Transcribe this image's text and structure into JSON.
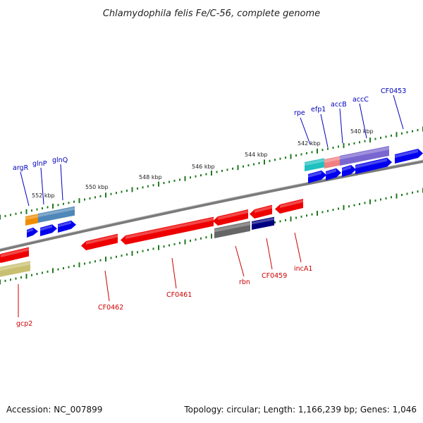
{
  "header": {
    "title": "Chlamydophila felis Fe/C-56, complete genome"
  },
  "footer": {
    "accession": "Accession: NC_007899",
    "summary": "Topology: circular; Length: 1,166,239 bp; Genes: 1,046"
  },
  "scale": {
    "labels": [
      "552 kbp",
      "550 kbp",
      "548 kbp",
      "546 kbp",
      "544 kbp",
      "542 kbp",
      "540 kbp"
    ]
  },
  "colors": {
    "backbone": "#7a7a7a",
    "tick": "#1f7a1f",
    "forward_label": "#0000bb",
    "reverse_label": "#cc0000",
    "forward_cds": "#0000ee",
    "reverse_cds": "#ee0000",
    "cog_orange": "#f08c00",
    "cog_steel": "#4f87b8",
    "cog_teal": "#20c0c0",
    "cog_salmon": "#f08080",
    "cog_purple": "#7a66d0",
    "cog_gray": "#666666",
    "cog_navy": "#000080",
    "cog_khaki": "#c8c070"
  },
  "genes": {
    "forward_labels": [
      "argR",
      "glnP",
      "glnQ",
      "rpe",
      "efp1",
      "accB",
      "accC",
      "CF0453"
    ],
    "reverse_labels": [
      "gcp2",
      "CF0462",
      "CF0461",
      "rbn",
      "CF0459",
      "incA1"
    ]
  }
}
